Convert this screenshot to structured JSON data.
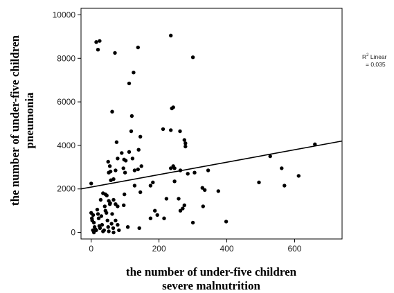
{
  "chart_data": {
    "type": "scatter",
    "xlabel": [
      "the number of under-five children",
      "severe malnutrition"
    ],
    "ylabel": [
      "the number of under-five children",
      "pneumonia"
    ],
    "xlim": [
      -30,
      740
    ],
    "ylim": [
      -300,
      10300
    ],
    "xticks": [
      0,
      200,
      400,
      600
    ],
    "yticks": [
      0,
      2000,
      4000,
      6000,
      8000,
      10000
    ],
    "xtick_labels": [
      "0",
      "200",
      "400",
      "600"
    ],
    "ytick_labels": [
      "0",
      "2000",
      "4000",
      "6000",
      "8000",
      "10000"
    ],
    "grid": false,
    "fit_line": {
      "type": "linear",
      "start": [
        -30,
        2000
      ],
      "end": [
        740,
        4200
      ]
    },
    "fit_label": {
      "r2_text": "R",
      "r2_sup": "2",
      "r2_rest": " Linear",
      "value": "= 0,035"
    },
    "points": [
      [
        15,
        8750
      ],
      [
        20,
        8400
      ],
      [
        25,
        8800
      ],
      [
        70,
        8250
      ],
      [
        138,
        8500
      ],
      [
        235,
        9050
      ],
      [
        300,
        8050
      ],
      [
        112,
        6850
      ],
      [
        125,
        7350
      ],
      [
        62,
        5550
      ],
      [
        120,
        5350
      ],
      [
        242,
        5750
      ],
      [
        238,
        5700
      ],
      [
        118,
        4650
      ],
      [
        145,
        4400
      ],
      [
        212,
        4750
      ],
      [
        235,
        4700
      ],
      [
        262,
        4650
      ],
      [
        275,
        4250
      ],
      [
        278,
        4100
      ],
      [
        278,
        3950
      ],
      [
        75,
        4150
      ],
      [
        90,
        3650
      ],
      [
        112,
        3700
      ],
      [
        122,
        3400
      ],
      [
        140,
        3800
      ],
      [
        78,
        3400
      ],
      [
        97,
        3350
      ],
      [
        102,
        3300
      ],
      [
        50,
        3250
      ],
      [
        55,
        3050
      ],
      [
        57,
        2800
      ],
      [
        52,
        2750
      ],
      [
        58,
        2400
      ],
      [
        66,
        2450
      ],
      [
        72,
        2850
      ],
      [
        95,
        2950
      ],
      [
        100,
        2750
      ],
      [
        128,
        2850
      ],
      [
        138,
        2900
      ],
      [
        148,
        3050
      ],
      [
        235,
        2950
      ],
      [
        242,
        3050
      ],
      [
        246,
        2950
      ],
      [
        263,
        2850
      ],
      [
        285,
        2700
      ],
      [
        305,
        2750
      ],
      [
        345,
        2850
      ],
      [
        328,
        2050
      ],
      [
        335,
        1950
      ],
      [
        375,
        1900
      ],
      [
        495,
        2300
      ],
      [
        528,
        3500
      ],
      [
        562,
        2950
      ],
      [
        570,
        2150
      ],
      [
        612,
        2600
      ],
      [
        660,
        4050
      ],
      [
        0,
        2250
      ],
      [
        35,
        1800
      ],
      [
        42,
        1750
      ],
      [
        46,
        1700
      ],
      [
        52,
        1450
      ],
      [
        56,
        1350
      ],
      [
        66,
        1500
      ],
      [
        72,
        1300
      ],
      [
        78,
        1200
      ],
      [
        96,
        1250
      ],
      [
        98,
        1750
      ],
      [
        128,
        2150
      ],
      [
        145,
        1850
      ],
      [
        175,
        2150
      ],
      [
        182,
        2300
      ],
      [
        222,
        1550
      ],
      [
        246,
        2350
      ],
      [
        258,
        1550
      ],
      [
        263,
        1000
      ],
      [
        270,
        1100
      ],
      [
        275,
        1250
      ],
      [
        330,
        1200
      ],
      [
        188,
        1000
      ],
      [
        195,
        800
      ],
      [
        215,
        650
      ],
      [
        175,
        650
      ],
      [
        300,
        450
      ],
      [
        398,
        500
      ],
      [
        108,
        250
      ],
      [
        142,
        200
      ],
      [
        0,
        900
      ],
      [
        2,
        650
      ],
      [
        3,
        550
      ],
      [
        6,
        800
      ],
      [
        8,
        450
      ],
      [
        10,
        250
      ],
      [
        12,
        150
      ],
      [
        15,
        100
      ],
      [
        18,
        1050
      ],
      [
        20,
        850
      ],
      [
        22,
        650
      ],
      [
        24,
        300
      ],
      [
        26,
        200
      ],
      [
        28,
        1500
      ],
      [
        30,
        750
      ],
      [
        32,
        350
      ],
      [
        35,
        50
      ],
      [
        38,
        100
      ],
      [
        40,
        1200
      ],
      [
        42,
        1000
      ],
      [
        45,
        900
      ],
      [
        48,
        550
      ],
      [
        50,
        250
      ],
      [
        52,
        50
      ],
      [
        55,
        1300
      ],
      [
        60,
        400
      ],
      [
        62,
        850
      ],
      [
        65,
        200
      ],
      [
        66,
        0
      ],
      [
        72,
        550
      ],
      [
        78,
        350
      ],
      [
        82,
        100
      ],
      [
        5,
        100
      ],
      [
        8,
        0
      ]
    ]
  }
}
